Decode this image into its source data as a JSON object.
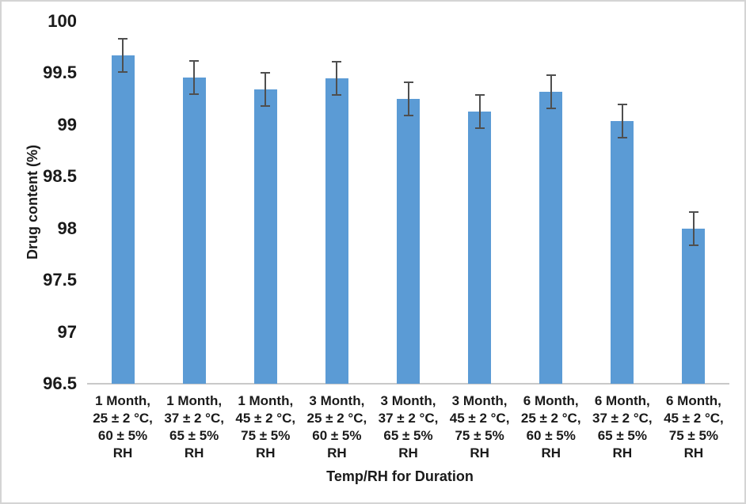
{
  "chart_data": {
    "type": "bar",
    "title": "",
    "xlabel": "Temp/RH for Duration",
    "ylabel": "Drug content (%)",
    "ylim": [
      96.5,
      100
    ],
    "ytick_step": 0.5,
    "ytick_labels": [
      "100",
      "99.5",
      "99",
      "98.5",
      "98",
      "97.5",
      "97",
      "96.5"
    ],
    "grid": false,
    "legend": "none",
    "bar_color": "#5B9BD5",
    "error_bar_color": "#4f4f4f",
    "axis_line_color": "#c9c9c9",
    "categories": [
      "1 Month, 25 ± 2 °C, 60 ± 5% RH",
      "1 Month, 37 ± 2 °C, 65 ± 5% RH",
      "1 Month, 45 ± 2 °C, 75 ± 5% RH",
      "3 Month, 25 ± 2 °C, 60 ± 5% RH",
      "3 Month, 37 ± 2 °C, 65 ± 5% RH",
      "3 Month, 45 ± 2 °C, 75 ± 5% RH",
      "6 Month, 25 ± 2 °C, 60 ± 5% RH",
      "6 Month, 37 ± 2 °C, 65 ± 5% RH",
      "6 Month, 45 ± 2 °C, 75 ± 5% RH"
    ],
    "category_lines": [
      [
        "1 Month,",
        "25 ± 2 °C,",
        "60 ± 5%",
        "RH"
      ],
      [
        "1 Month,",
        "37 ± 2 °C,",
        "65 ± 5%",
        "RH"
      ],
      [
        "1 Month,",
        "45 ± 2 °C,",
        "75 ± 5%",
        "RH"
      ],
      [
        "3 Month,",
        "25 ± 2 °C,",
        "60 ± 5%",
        "RH"
      ],
      [
        "3 Month,",
        "37 ± 2 °C,",
        "65 ± 5%",
        "RH"
      ],
      [
        "3 Month,",
        "45 ± 2 °C,",
        "75 ± 5%",
        "RH"
      ],
      [
        "6 Month,",
        "25 ± 2 °C,",
        "60 ± 5%",
        "RH"
      ],
      [
        "6 Month,",
        "37 ± 2 °C,",
        "65 ± 5%",
        "RH"
      ],
      [
        "6 Month,",
        "45 ± 2 °C,",
        "75 ± 5%",
        "RH"
      ]
    ],
    "values": [
      99.67,
      99.46,
      99.34,
      99.45,
      99.25,
      99.13,
      99.32,
      99.04,
      98.0
    ],
    "errors": [
      0.16,
      0.16,
      0.16,
      0.16,
      0.16,
      0.16,
      0.16,
      0.16,
      0.16
    ]
  }
}
